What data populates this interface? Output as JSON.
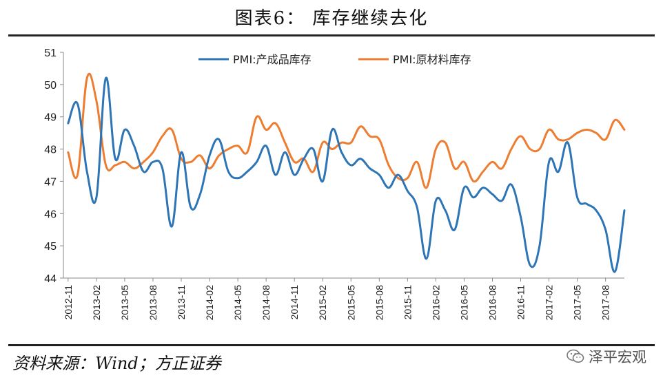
{
  "title": "图表6：  库存继续去化",
  "source": "资料来源：Wind；方正证券",
  "watermark": "泽平宏观",
  "chart_data": {
    "type": "line",
    "title": "",
    "xlabel": "",
    "ylabel": "",
    "ylim": [
      44,
      51
    ],
    "yticks": [
      "51",
      "50",
      "49",
      "48",
      "47",
      "46",
      "45",
      "44"
    ],
    "xtick_labels": [
      "2012-11",
      "2013-02",
      "2013-05",
      "2013-08",
      "2013-11",
      "2014-02",
      "2014-05",
      "2014-08",
      "2014-11",
      "2015-02",
      "2015-05",
      "2015-08",
      "2015-11",
      "2016-02",
      "2016-05",
      "2016-08",
      "2016-11",
      "2017-02",
      "2017-05",
      "2017-08"
    ],
    "x": [
      "2012-11",
      "2012-12",
      "2013-01",
      "2013-02",
      "2013-03",
      "2013-04",
      "2013-05",
      "2013-06",
      "2013-07",
      "2013-08",
      "2013-09",
      "2013-10",
      "2013-11",
      "2013-12",
      "2014-01",
      "2014-02",
      "2014-03",
      "2014-04",
      "2014-05",
      "2014-06",
      "2014-07",
      "2014-08",
      "2014-09",
      "2014-10",
      "2014-11",
      "2014-12",
      "2015-01",
      "2015-02",
      "2015-03",
      "2015-04",
      "2015-05",
      "2015-06",
      "2015-07",
      "2015-08",
      "2015-09",
      "2015-10",
      "2015-11",
      "2015-12",
      "2016-01",
      "2016-02",
      "2016-03",
      "2016-04",
      "2016-05",
      "2016-06",
      "2016-07",
      "2016-08",
      "2016-09",
      "2016-10",
      "2016-11",
      "2016-12",
      "2017-01",
      "2017-02",
      "2017-03",
      "2017-04",
      "2017-05",
      "2017-06",
      "2017-07",
      "2017-08",
      "2017-09",
      "2017-10"
    ],
    "legend_position": "top-center",
    "grid": false,
    "series": [
      {
        "name": "PMI:产成品库存",
        "color": "#2E75B6",
        "values": [
          48.8,
          49.4,
          47.3,
          46.5,
          50.2,
          47.7,
          48.6,
          48.1,
          47.3,
          47.6,
          47.4,
          45.6,
          47.9,
          46.2,
          46.6,
          47.8,
          48.3,
          47.3,
          47.1,
          47.3,
          47.6,
          48.1,
          47.2,
          47.9,
          47.2,
          47.7,
          48.0,
          47.0,
          48.6,
          47.9,
          47.5,
          47.7,
          47.4,
          47.2,
          46.8,
          47.2,
          46.7,
          46.2,
          44.6,
          46.4,
          46.1,
          45.5,
          46.8,
          46.5,
          46.8,
          46.6,
          46.4,
          46.9,
          45.9,
          44.4,
          45.0,
          47.6,
          47.3,
          48.2,
          46.5,
          46.3,
          46.1,
          45.5,
          44.2,
          46.1
        ]
      },
      {
        "name": "PMI:原材料库存",
        "color": "#ED7D31",
        "values": [
          47.9,
          47.2,
          50.2,
          49.5,
          47.5,
          47.5,
          47.6,
          47.4,
          47.6,
          47.9,
          48.4,
          48.6,
          47.7,
          47.6,
          47.8,
          47.4,
          47.8,
          48.0,
          48.1,
          47.9,
          49.0,
          48.6,
          48.8,
          48.2,
          47.6,
          47.7,
          47.3,
          48.2,
          48.0,
          48.2,
          48.2,
          48.7,
          48.4,
          48.3,
          47.5,
          47.1,
          47.1,
          47.6,
          46.8,
          48.0,
          48.2,
          47.4,
          47.6,
          47.0,
          47.3,
          47.6,
          47.4,
          48.0,
          48.4,
          48.0,
          48.0,
          48.6,
          48.3,
          48.3,
          48.5,
          48.6,
          48.5,
          48.3,
          48.9,
          48.6
        ]
      }
    ]
  }
}
